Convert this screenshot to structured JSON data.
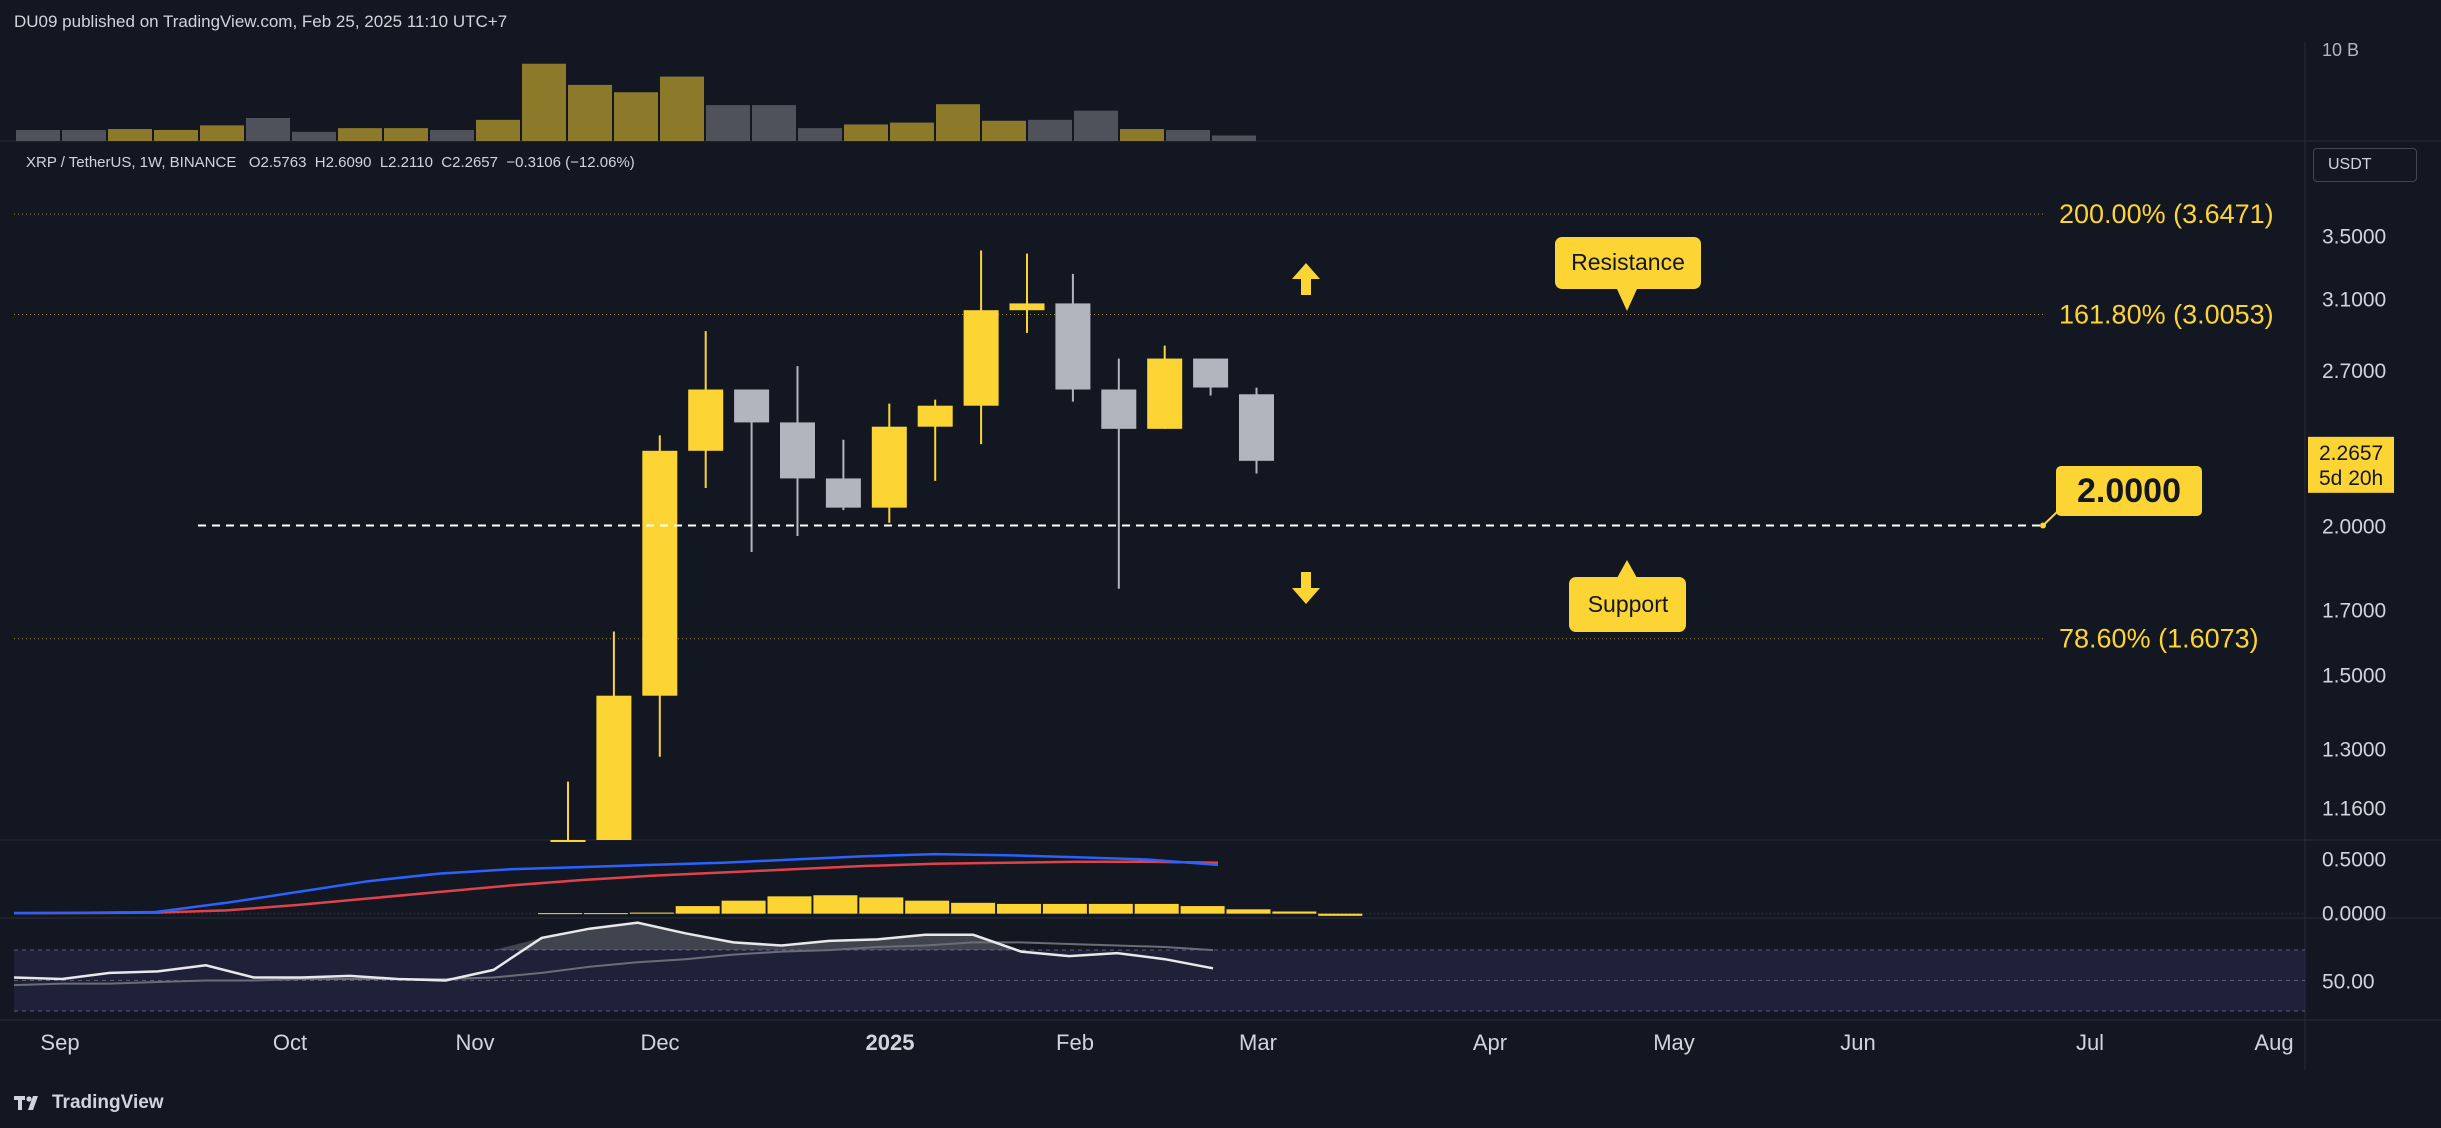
{
  "header": {
    "published": "DU09 published on TradingView.com, Feb 25, 2025 11:10 UTC+7"
  },
  "legend": {
    "symbol": "XRP / TetherUS, 1W, BINANCE",
    "open": "O2.5763",
    "high": "H2.6090",
    "low": "L2.2110",
    "close": "C2.2657",
    "change": "−0.3106 (−12.06%)"
  },
  "currency_label": "USDT",
  "footer": {
    "brand": "TradingView",
    "logo_icon": "tradingview-logo-icon"
  },
  "colors": {
    "background": "#131722",
    "up": "#fcd535",
    "down": "#b2b5be",
    "fib_line": "#9a8a38",
    "fib_text": "#fcd535",
    "macd": "#2962ff",
    "signal": "#e0424a",
    "rsi": "#e8e8ea",
    "rsi_ma": "#6a6d78",
    "rsi_band": "#2a2a4a"
  },
  "chart_data": {
    "type": "candlestick",
    "price_axis": {
      "scale": "log",
      "range": [
        1.09,
        4.2
      ],
      "ticks": [
        "3.5000",
        "3.1000",
        "2.7000",
        "2.0000",
        "1.7000",
        "1.5000",
        "1.3000",
        "1.1600"
      ]
    },
    "time_axis": {
      "ticks": [
        "Sep",
        "Oct",
        "Nov",
        "Dec",
        "2025",
        "Feb",
        "Mar",
        "Apr",
        "May",
        "Jun",
        "Jul",
        "Aug"
      ]
    },
    "candles": [
      {
        "o": 0.6,
        "h": 1.22,
        "l": 0.58,
        "c": 1.09,
        "up": true
      },
      {
        "o": 1.09,
        "h": 1.63,
        "l": 1.0,
        "c": 1.44,
        "up": true
      },
      {
        "o": 1.44,
        "h": 2.38,
        "l": 1.28,
        "c": 2.31,
        "up": true
      },
      {
        "o": 2.31,
        "h": 2.91,
        "l": 2.15,
        "c": 2.6,
        "up": true
      },
      {
        "o": 2.6,
        "h": 2.6,
        "l": 1.9,
        "c": 2.44,
        "up": false
      },
      {
        "o": 2.44,
        "h": 2.72,
        "l": 1.96,
        "c": 2.19,
        "up": false
      },
      {
        "o": 2.19,
        "h": 2.36,
        "l": 2.06,
        "c": 2.07,
        "up": false
      },
      {
        "o": 2.07,
        "h": 2.53,
        "l": 2.01,
        "c": 2.42,
        "up": true
      },
      {
        "o": 2.42,
        "h": 2.55,
        "l": 2.18,
        "c": 2.52,
        "up": true
      },
      {
        "o": 2.52,
        "h": 3.4,
        "l": 2.34,
        "c": 3.03,
        "up": true
      },
      {
        "o": 3.03,
        "h": 3.38,
        "l": 2.9,
        "c": 3.07,
        "up": true
      },
      {
        "o": 3.07,
        "h": 3.25,
        "l": 2.54,
        "c": 2.6,
        "up": false
      },
      {
        "o": 2.6,
        "h": 2.76,
        "l": 1.77,
        "c": 2.41,
        "up": false
      },
      {
        "o": 2.41,
        "h": 2.83,
        "l": 2.41,
        "c": 2.76,
        "up": true
      },
      {
        "o": 2.76,
        "h": 2.76,
        "l": 2.57,
        "c": 2.61,
        "up": false
      },
      {
        "o": 2.5763,
        "h": 2.609,
        "l": 2.211,
        "c": 2.2657,
        "up": false
      }
    ],
    "volume": {
      "axis_label": "10 B",
      "bars": [
        {
          "v": 0.12,
          "up": false
        },
        {
          "v": 0.12,
          "up": false
        },
        {
          "v": 0.13,
          "up": true
        },
        {
          "v": 0.12,
          "up": true
        },
        {
          "v": 0.17,
          "up": true
        },
        {
          "v": 0.25,
          "up": false
        },
        {
          "v": 0.1,
          "up": false
        },
        {
          "v": 0.14,
          "up": true
        },
        {
          "v": 0.14,
          "up": true
        },
        {
          "v": 0.12,
          "up": false
        },
        {
          "v": 0.23,
          "up": true
        },
        {
          "v": 0.84,
          "up": true
        },
        {
          "v": 0.61,
          "up": true
        },
        {
          "v": 0.53,
          "up": true
        },
        {
          "v": 0.7,
          "up": true
        },
        {
          "v": 0.39,
          "up": false
        },
        {
          "v": 0.39,
          "up": false
        },
        {
          "v": 0.14,
          "up": false
        },
        {
          "v": 0.18,
          "up": true
        },
        {
          "v": 0.2,
          "up": true
        },
        {
          "v": 0.4,
          "up": true
        },
        {
          "v": 0.22,
          "up": true
        },
        {
          "v": 0.23,
          "up": false
        },
        {
          "v": 0.33,
          "up": false
        },
        {
          "v": 0.13,
          "up": true
        },
        {
          "v": 0.12,
          "up": false
        },
        {
          "v": 0.06,
          "up": false
        }
      ]
    },
    "fib_levels": [
      {
        "label": "200.00% (3.6471)",
        "price": 3.6471
      },
      {
        "label": "161.80% (3.0053)",
        "price": 3.0053
      },
      {
        "label": "78.60% (1.6073)",
        "price": 1.6073
      }
    ],
    "key_level": {
      "label": "2.0000",
      "price": 2.0
    },
    "annotations": {
      "resistance": "Resistance",
      "support": "Support",
      "up_arrow": "arrow-up-icon",
      "down_arrow": "arrow-down-icon"
    },
    "last_price": {
      "value": "2.2657",
      "countdown": "5d 20h"
    },
    "macd": {
      "axis_ticks": [
        "0.5000",
        "0.0000"
      ],
      "range": [
        -0.04,
        0.68
      ],
      "macd_line": [
        0.005,
        0.008,
        0.015,
        0.1,
        0.2,
        0.3,
        0.37,
        0.41,
        0.43,
        0.45,
        0.47,
        0.5,
        0.53,
        0.55,
        0.54,
        0.52,
        0.5,
        0.45
      ],
      "signal_line": [
        0.005,
        0.006,
        0.01,
        0.03,
        0.08,
        0.14,
        0.2,
        0.26,
        0.31,
        0.35,
        0.38,
        0.41,
        0.44,
        0.46,
        0.47,
        0.48,
        0.48,
        0.47
      ],
      "histogram": [
        0.005,
        0.005,
        0.01,
        0.07,
        0.12,
        0.16,
        0.17,
        0.15,
        0.12,
        0.1,
        0.09,
        0.09,
        0.09,
        0.09,
        0.07,
        0.04,
        0.02,
        -0.02
      ]
    },
    "rsi": {
      "axis_ticks": [
        "50.00"
      ],
      "range": [
        28,
        95
      ],
      "band": [
        30,
        70
      ],
      "rsi_line": [
        52,
        51,
        55,
        56,
        60,
        52,
        52,
        53,
        51,
        50,
        57,
        78,
        84,
        88,
        81,
        75,
        73,
        76,
        77,
        80,
        80,
        69,
        66,
        68,
        64,
        58
      ],
      "rsi_ma": [
        47,
        48,
        48,
        49,
        50,
        50,
        51,
        51,
        51,
        51,
        52,
        55,
        59,
        62,
        64,
        67,
        69,
        70,
        72,
        73,
        75,
        75,
        74,
        73,
        72,
        70
      ]
    }
  }
}
